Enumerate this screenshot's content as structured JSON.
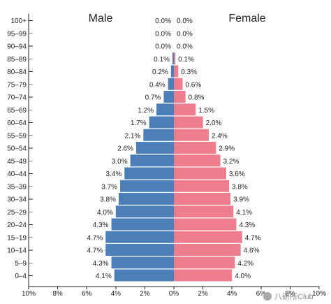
{
  "colors": {
    "male": "#4C7FB8",
    "female": "#EE7D8E"
  },
  "chart_data": {
    "type": "bar",
    "subtype": "population-pyramid",
    "title": "",
    "categories": [
      "100+",
      "95–99",
      "90–94",
      "85–89",
      "80–84",
      "75–79",
      "70–74",
      "65–69",
      "60–64",
      "55–59",
      "50–54",
      "45–49",
      "40–44",
      "35–39",
      "30–34",
      "25–29",
      "20–24",
      "15–19",
      "10–14",
      "5–9",
      "0–4"
    ],
    "series": [
      {
        "name": "Male",
        "values": [
          0.0,
          0.0,
          0.0,
          0.1,
          0.2,
          0.4,
          0.7,
          1.2,
          1.7,
          2.1,
          2.6,
          3.0,
          3.4,
          3.7,
          3.8,
          4.0,
          4.3,
          4.7,
          4.7,
          4.3,
          4.1
        ],
        "labels": [
          "0.0%",
          "0.0%",
          "0.0%",
          "0.1%",
          "0.2%",
          "0.4%",
          "0.7%",
          "1.2%",
          "1.7%",
          "2.1%",
          "2.6%",
          "3.0%",
          "3.4%",
          "3.7%",
          "3.8%",
          "4.0%",
          "4.3%",
          "4.7%",
          "4.7%",
          "4.3%",
          "4.1%"
        ]
      },
      {
        "name": "Female",
        "values": [
          0.0,
          0.0,
          0.0,
          0.1,
          0.3,
          0.6,
          0.8,
          1.5,
          2.0,
          2.4,
          2.9,
          3.2,
          3.6,
          3.8,
          3.9,
          4.1,
          4.3,
          4.7,
          4.6,
          4.2,
          4.0
        ],
        "labels": [
          "0.0%",
          "0.0%",
          "0.0%",
          "0.1%",
          "0.3%",
          "0.6%",
          "0.8%",
          "1.5%",
          "2.0%",
          "2.4%",
          "2.9%",
          "3.2%",
          "3.6%",
          "3.8%",
          "3.9%",
          "4.1%",
          "4.3%",
          "4.7%",
          "4.6%",
          "4.2%",
          "4.0%"
        ]
      }
    ],
    "xlim": [
      -10,
      10
    ],
    "xticks": [
      -10,
      -8,
      -6,
      -4,
      -2,
      0,
      2,
      4,
      6,
      8,
      10
    ],
    "xtick_labels": [
      "10%",
      "8%",
      "6%",
      "4%",
      "2%",
      "0%",
      "2%",
      "4%",
      "6%",
      "8%",
      "10%"
    ],
    "grid": false,
    "legend": "none"
  },
  "watermark": {
    "text": "八研所Club"
  }
}
